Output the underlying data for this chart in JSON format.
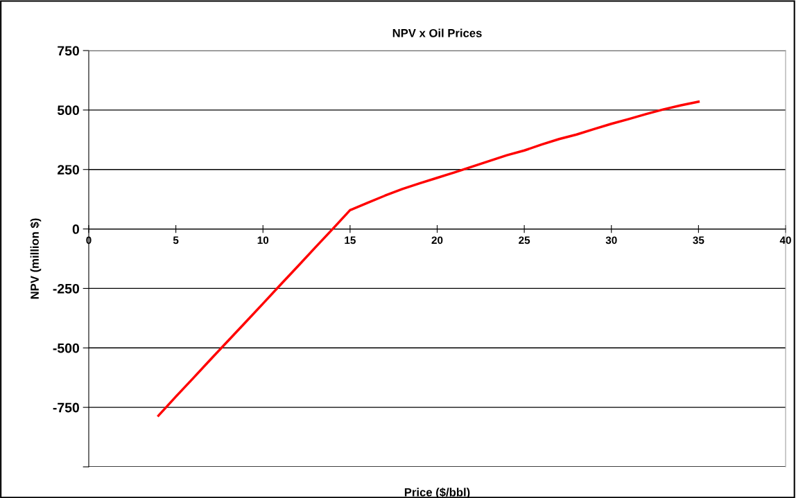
{
  "chart_data": {
    "type": "line",
    "title": "NPV x Oil Prices",
    "xlabel": "Price ($/bbl)",
    "ylabel": "NPV (million $)",
    "x": [
      4,
      5,
      6,
      7,
      8,
      9,
      10,
      11,
      12,
      13,
      14,
      15,
      16,
      17,
      18,
      19,
      20,
      21,
      22,
      23,
      24,
      25,
      26,
      27,
      28,
      29,
      30,
      31,
      32,
      33,
      34,
      35
    ],
    "series": [
      {
        "color": "#ff0000",
        "values": [
          -785,
          -705,
          -627,
          -548,
          -470,
          -392,
          -314,
          -235,
          -157,
          -78,
          0,
          79,
          110,
          140,
          168,
          192,
          215,
          238,
          262,
          286,
          310,
          330,
          355,
          378,
          397,
          420,
          442,
          462,
          483,
          503,
          520,
          535
        ]
      }
    ],
    "xlim": [
      0,
      40
    ],
    "xticks": [
      0,
      5,
      10,
      15,
      20,
      25,
      30,
      35,
      40
    ],
    "ylim": [
      -1000,
      750
    ],
    "yticks": [
      {
        "value": -1000,
        "label": null
      },
      -750,
      -500,
      -250,
      0,
      250,
      500,
      750
    ],
    "grid": "y",
    "legend": false,
    "marker": "none",
    "line_style": "solid"
  }
}
